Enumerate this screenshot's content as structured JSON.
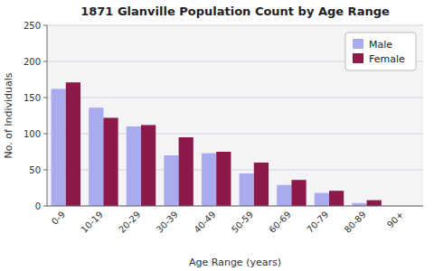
{
  "chart_data": {
    "type": "bar",
    "title": "1871 Glanville Population Count by Age Range",
    "xlabel": "Age Range (years)",
    "ylabel": "No. of Individuals",
    "categories": [
      "0-9",
      "10-19",
      "20-29",
      "30-39",
      "40-49",
      "50-59",
      "60-69",
      "70-79",
      "80-89",
      "90+"
    ],
    "series": [
      {
        "name": "Male",
        "color": "#aaaaee",
        "values": [
          162,
          136,
          110,
          70,
          73,
          45,
          29,
          18,
          4,
          0
        ]
      },
      {
        "name": "Female",
        "color": "#8b1a4a",
        "values": [
          171,
          122,
          112,
          95,
          75,
          60,
          36,
          21,
          8,
          0
        ]
      }
    ],
    "ylim": [
      0,
      250
    ],
    "yticks": [
      0,
      50,
      100,
      150,
      200,
      250
    ],
    "grid": true,
    "legend": "upper right"
  }
}
